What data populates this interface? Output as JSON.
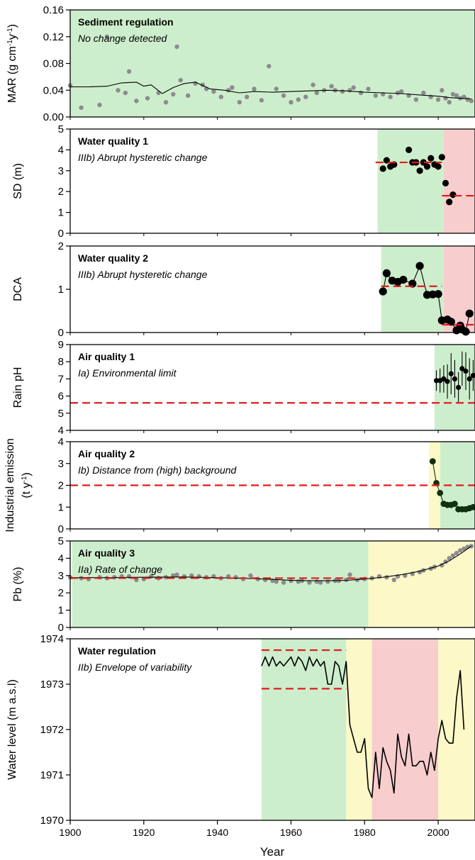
{
  "figure": {
    "xlabel": "Year",
    "x_ticks": [
      1900,
      1920,
      1940,
      1960,
      1980,
      2000
    ],
    "xlim": [
      1900,
      2010
    ]
  },
  "colors": {
    "green": "#cdeecd",
    "red": "#f8cdcd",
    "yellow": "#fcf8c8",
    "grey_point": "#8c8c8c",
    "black": "#000000",
    "dark_green": "#103010",
    "threshold": "#e01c1c"
  },
  "chart_data": [
    {
      "type": "scatter",
      "title": "Sediment regulation",
      "subtitle": "No change detected",
      "ylabel": "MAR (g cm-1y-1)",
      "ylim": [
        0,
        0.16
      ],
      "y_ticks": [
        "0.00",
        "0.04",
        "0.08",
        "0.12",
        "0.16"
      ],
      "bands": [
        {
          "from": 1900,
          "to": 2010,
          "color": "green"
        }
      ],
      "series": [
        {
          "style": "grey-points",
          "x": [
            1900,
            1903,
            1908,
            1910,
            1913,
            1915,
            1916,
            1918,
            1921,
            1924,
            1926,
            1928,
            1929,
            1930,
            1932,
            1934,
            1936,
            1937,
            1939,
            1941,
            1943,
            1944,
            1946,
            1948,
            1950,
            1952,
            1954,
            1956,
            1958,
            1960,
            1962,
            1964,
            1966,
            1967,
            1969,
            1971,
            1972,
            1974,
            1976,
            1977,
            1979,
            1981,
            1983,
            1985,
            1987,
            1989,
            1990,
            1992,
            1994,
            1996,
            1998,
            2000,
            2001,
            2002,
            2003,
            2004,
            2005,
            2006,
            2007,
            2008,
            2009
          ],
          "y": [
            0.047,
            0.014,
            0.018,
            0.12,
            0.04,
            0.036,
            0.068,
            0.024,
            0.028,
            0.036,
            0.022,
            0.034,
            0.105,
            0.055,
            0.032,
            0.05,
            0.048,
            0.042,
            0.038,
            0.03,
            0.04,
            0.044,
            0.022,
            0.03,
            0.042,
            0.025,
            0.076,
            0.042,
            0.032,
            0.022,
            0.026,
            0.03,
            0.048,
            0.036,
            0.04,
            0.046,
            0.04,
            0.038,
            0.04,
            0.044,
            0.036,
            0.042,
            0.032,
            0.034,
            0.03,
            0.036,
            0.038,
            0.032,
            0.026,
            0.036,
            0.03,
            0.026,
            0.04,
            0.028,
            0.022,
            0.034,
            0.032,
            0.028,
            0.03,
            0.026,
            0.024
          ]
        },
        {
          "style": "line",
          "x": [
            1900,
            1905,
            1910,
            1914,
            1918,
            1920,
            1922,
            1925,
            1928,
            1931,
            1934,
            1938,
            1942,
            1946,
            1950,
            1955,
            1960,
            1965,
            1970,
            1975,
            1980,
            1985,
            1990,
            1995,
            2000,
            2003,
            2006,
            2009
          ],
          "y": [
            0.045,
            0.045,
            0.046,
            0.051,
            0.052,
            0.046,
            0.048,
            0.035,
            0.044,
            0.05,
            0.052,
            0.042,
            0.04,
            0.036,
            0.038,
            0.037,
            0.038,
            0.039,
            0.04,
            0.039,
            0.037,
            0.036,
            0.035,
            0.033,
            0.031,
            0.029,
            0.028,
            0.027
          ]
        }
      ]
    },
    {
      "type": "scatter",
      "title": "Water quality 1",
      "subtitle": "IIIb) Abrupt hysteretic change",
      "ylabel": "SD (m)",
      "ylim": [
        0,
        5
      ],
      "y_ticks": [
        "0",
        "1",
        "2",
        "3",
        "4",
        "5"
      ],
      "bands": [
        {
          "from": 1983.5,
          "to": 2001.5,
          "color": "green"
        },
        {
          "from": 2001.5,
          "to": 2010,
          "color": "red"
        }
      ],
      "thresholds": [
        {
          "from": 1983,
          "to": 2001,
          "y": 3.4
        },
        {
          "from": 2001,
          "to": 2010,
          "y": 1.8
        }
      ],
      "series": [
        {
          "style": "black-points",
          "x": [
            1985,
            1986,
            1987,
            1988,
            1992,
            1993,
            1994,
            1995,
            1996,
            1997,
            1998,
            1999,
            2000,
            2001,
            2002,
            2003,
            2004
          ],
          "y": [
            3.1,
            3.5,
            3.2,
            3.3,
            4.0,
            3.4,
            3.4,
            3.0,
            3.4,
            3.2,
            3.6,
            3.3,
            3.2,
            3.65,
            2.4,
            1.5,
            1.85
          ]
        }
      ]
    },
    {
      "type": "line",
      "title": "Water quality 2",
      "subtitle": "IIIb) Abrupt hysteretic change",
      "ylabel": "DCA",
      "ylim": [
        0,
        2
      ],
      "y_ticks": [
        "0",
        "1",
        "2"
      ],
      "bands": [
        {
          "from": 1984.5,
          "to": 2001.5,
          "color": "green"
        },
        {
          "from": 2001.5,
          "to": 2010,
          "color": "red"
        }
      ],
      "thresholds": [
        {
          "from": 1984.5,
          "to": 2001,
          "y": 1.07
        },
        {
          "from": 2001,
          "to": 2010,
          "y": 0.18
        }
      ],
      "series": [
        {
          "style": "black-line-points",
          "x": [
            1985,
            1986,
            1987.5,
            1989,
            1990.5,
            1993,
            1995,
            1997,
            1998.5,
            2000,
            2001,
            2002.5,
            2003.5,
            2005,
            2006,
            2006.5,
            2007.5,
            2008.5
          ],
          "y": [
            0.95,
            1.37,
            1.2,
            1.17,
            1.22,
            1.13,
            1.54,
            0.87,
            0.88,
            0.89,
            0.28,
            0.3,
            0.25,
            0.05,
            0.16,
            0.07,
            0.02,
            0.44
          ]
        }
      ]
    },
    {
      "type": "scatter",
      "title": "Air quality 1",
      "subtitle": "Ia) Environmental limit",
      "ylabel": "Rain pH",
      "ylim": [
        4,
        9
      ],
      "y_ticks": [
        "4",
        "5",
        "6",
        "7",
        "8",
        "9"
      ],
      "bands": [
        {
          "from": 1999,
          "to": 2010,
          "color": "green"
        }
      ],
      "thresholds": [
        {
          "from": 1900,
          "to": 2010,
          "y": 5.6
        }
      ],
      "series": [
        {
          "style": "error-points",
          "x": [
            1999.5,
            2000.5,
            2001.5,
            2002.5,
            2003.5,
            2004.5,
            2005.5,
            2006.5,
            2007.5,
            2008.5,
            2009.5
          ],
          "y": [
            6.9,
            6.9,
            7.0,
            6.85,
            7.3,
            7.0,
            6.5,
            7.6,
            7.45,
            7.0,
            7.2
          ],
          "err": [
            0.6,
            0.7,
            0.8,
            1.0,
            1.2,
            1.1,
            0.9,
            1.0,
            1.1,
            1.2,
            0.9
          ]
        }
      ]
    },
    {
      "type": "line",
      "title": "Air quality 2",
      "subtitle": "Ib) Distance from (high) background",
      "ylabel": "Industrial emission",
      "ylabel2": "(t y-1)",
      "ylim": [
        0,
        4
      ],
      "y_ticks": [
        "0",
        "1",
        "2",
        "3",
        "4"
      ],
      "bands": [
        {
          "from": 1997.5,
          "to": 2000.5,
          "color": "yellow"
        },
        {
          "from": 2000.5,
          "to": 2010,
          "color": "green"
        }
      ],
      "thresholds": [
        {
          "from": 1900,
          "to": 2010,
          "y": 2.0
        }
      ],
      "series": [
        {
          "style": "dark-line-points",
          "x": [
            1998.5,
            1999.5,
            2000.5,
            2001.5,
            2002.5,
            2003.5,
            2004.5,
            2005.5,
            2006.5,
            2007.5,
            2008.5,
            2009.5
          ],
          "y": [
            3.1,
            2.1,
            1.65,
            1.15,
            1.1,
            1.1,
            1.15,
            0.9,
            0.9,
            0.9,
            0.95,
            1.0
          ]
        }
      ]
    },
    {
      "type": "scatter",
      "title": "Air quality 3",
      "subtitle": "IIa) Rate of change",
      "ylabel": "Pb (%)",
      "ylim": [
        0,
        5
      ],
      "y_ticks": [
        "0",
        "1",
        "2",
        "3",
        "4",
        "5"
      ],
      "bands": [
        {
          "from": 1900.5,
          "to": 1981,
          "color": "green"
        },
        {
          "from": 1981,
          "to": 2010,
          "color": "yellow"
        }
      ],
      "thresholds": [
        {
          "from": 1900,
          "to": 1981,
          "y": 2.85
        }
      ],
      "series": [
        {
          "style": "grey-points",
          "x": [
            1900,
            1903,
            1905,
            1908,
            1910,
            1912,
            1914,
            1916,
            1918,
            1920,
            1922,
            1924,
            1926,
            1928,
            1929,
            1931,
            1933,
            1935,
            1937,
            1939,
            1941,
            1943,
            1945,
            1947,
            1949,
            1951,
            1953,
            1955,
            1956,
            1958,
            1960,
            1962,
            1963,
            1965,
            1967,
            1968,
            1970,
            1972,
            1973,
            1975,
            1976,
            1978,
            1980,
            1982,
            1984,
            1986,
            1988,
            1989,
            1991,
            1993,
            1995,
            1996,
            1998,
            1999,
            2001,
            2002,
            2003,
            2004,
            2005,
            2006,
            2007,
            2008,
            2009
          ],
          "y": [
            2.9,
            2.85,
            2.8,
            2.9,
            2.85,
            2.9,
            2.95,
            2.95,
            2.75,
            2.8,
            2.95,
            2.85,
            2.9,
            3.0,
            3.05,
            2.95,
            3.0,
            2.95,
            2.9,
            2.95,
            2.85,
            2.95,
            2.9,
            2.8,
            3.0,
            2.8,
            2.75,
            2.7,
            2.65,
            2.6,
            2.7,
            2.65,
            2.7,
            2.6,
            2.65,
            2.6,
            2.65,
            2.7,
            2.7,
            2.75,
            3.05,
            2.75,
            2.8,
            2.85,
            2.95,
            2.9,
            2.75,
            2.95,
            3.0,
            3.1,
            3.2,
            3.3,
            3.4,
            3.5,
            3.6,
            3.8,
            4.0,
            4.15,
            4.3,
            4.45,
            4.55,
            4.65,
            4.7
          ]
        },
        {
          "style": "line",
          "x": [
            1900,
            1910,
            1920,
            1930,
            1940,
            1950,
            1955,
            1960,
            1965,
            1970,
            1975,
            1980,
            1985,
            1990,
            1995,
            2000,
            2003,
            2006,
            2009
          ],
          "y": [
            2.88,
            2.88,
            2.9,
            2.92,
            2.88,
            2.82,
            2.78,
            2.72,
            2.7,
            2.7,
            2.72,
            2.8,
            2.9,
            3.05,
            3.25,
            3.55,
            3.85,
            4.25,
            4.7
          ]
        }
      ]
    },
    {
      "type": "line",
      "title": "Water regulation",
      "subtitle": "IIb) Envelope of variability",
      "ylabel": "Water level (m a.s.l)",
      "ylim": [
        1970,
        1974
      ],
      "y_ticks": [
        "1970",
        "1971",
        "1972",
        "1973",
        "1974"
      ],
      "bands": [
        {
          "from": 1952,
          "to": 1975,
          "color": "green"
        },
        {
          "from": 1975,
          "to": 1982,
          "color": "yellow"
        },
        {
          "from": 1982,
          "to": 2000,
          "color": "red"
        },
        {
          "from": 2000,
          "to": 2010,
          "color": "yellow"
        }
      ],
      "thresholds": [
        {
          "from": 1952,
          "to": 1975,
          "y": 1973.75
        },
        {
          "from": 1952,
          "to": 1975,
          "y": 1972.9
        }
      ],
      "series": [
        {
          "style": "black-line",
          "x": [
            1952,
            1953,
            1954,
            1955,
            1956,
            1957,
            1958,
            1959,
            1960,
            1961,
            1962,
            1963,
            1964,
            1965,
            1966,
            1967,
            1968,
            1969,
            1970,
            1971,
            1972,
            1973,
            1974,
            1975,
            1976,
            1977,
            1978,
            1979,
            1980,
            1981,
            1982,
            1983,
            1984,
            1985,
            1986,
            1987,
            1988,
            1989,
            1990,
            1991,
            1992,
            1993,
            1994,
            1995,
            1996,
            1997,
            1998,
            1999,
            2000,
            2001,
            2002,
            2003,
            2004,
            2005,
            2006,
            2007
          ],
          "y": [
            1973.4,
            1973.6,
            1973.4,
            1973.6,
            1973.4,
            1973.5,
            1973.4,
            1973.5,
            1973.6,
            1973.4,
            1973.6,
            1973.5,
            1973.3,
            1973.6,
            1973.4,
            1973.55,
            1973.4,
            1973.5,
            1973.0,
            1973.0,
            1973.5,
            1973.4,
            1973.0,
            1973.5,
            1972.1,
            1971.8,
            1971.5,
            1971.5,
            1971.8,
            1970.7,
            1970.5,
            1971.5,
            1970.7,
            1971.6,
            1971.3,
            1971.1,
            1970.6,
            1971.9,
            1971.4,
            1971.2,
            1971.9,
            1971.2,
            1971.2,
            1971.3,
            1971.3,
            1971.0,
            1971.5,
            1971.1,
            1971.8,
            1972.2,
            1971.8,
            1971.7,
            1971.7,
            1972.7,
            1973.3,
            1972.0
          ]
        }
      ]
    }
  ]
}
